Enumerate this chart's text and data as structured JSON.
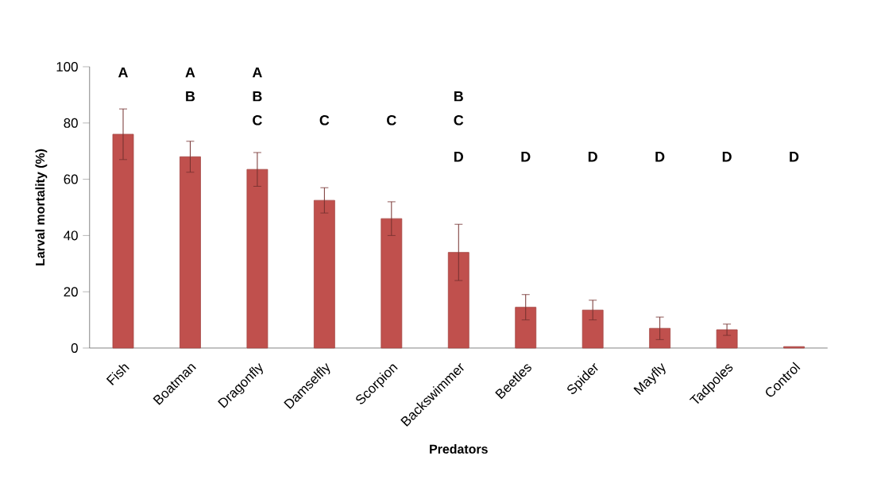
{
  "chart_data": {
    "type": "bar",
    "xlabel": "Predators",
    "ylabel": "Larval mortality (%)",
    "categories": [
      "Fish",
      "Boatman",
      "Dragonfly",
      "Damselfly",
      "Scorpion",
      "Backswimmer",
      "Beetles",
      "Spider",
      "Mayfly",
      "Tadpoles",
      "Control"
    ],
    "values": [
      76,
      68,
      63.5,
      52.5,
      46,
      34,
      14.5,
      13.5,
      7,
      6.5,
      0.5
    ],
    "errors": [
      9,
      5.5,
      6,
      4.5,
      6,
      10,
      4.5,
      3.5,
      4,
      2,
      null
    ],
    "color": "#c0504d",
    "ylim": [
      0,
      100
    ],
    "yticks": [
      0,
      20,
      40,
      60,
      80,
      100
    ],
    "annotations": [
      "A",
      "A",
      "B",
      "A",
      "B",
      "C",
      "C",
      "C",
      "B",
      "C",
      "D",
      "D",
      "D",
      "D",
      "D",
      "D"
    ]
  }
}
